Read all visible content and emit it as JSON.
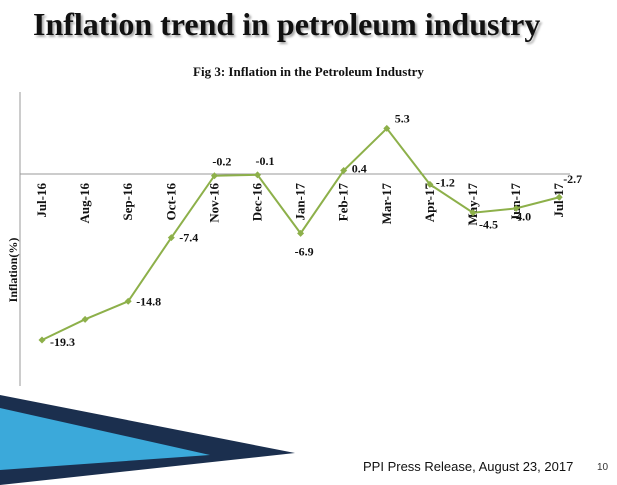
{
  "slide": {
    "title": "Inflation trend  in petroleum industry",
    "footer": "PPI Press Release, August 23, 2017",
    "page_number": "10"
  },
  "colors": {
    "line": "#8DB04A",
    "marker": "#8DB04A",
    "accent_dark": "#1B2F4E",
    "accent_light": "#3BA9DA"
  },
  "chart_data": {
    "type": "line",
    "title": "Fig 3: Inflation in the Petroleum Industry",
    "xlabel": "",
    "ylabel": "Inflation(%)",
    "categories": [
      "Jul-16",
      "Aug-16",
      "Sep-16",
      "Oct-16",
      "Nov-16",
      "Dec-16",
      "Jan-17",
      "Feb-17",
      "Mar-17",
      "Apr-17",
      "May-17",
      "Jun-17",
      "Jul-17"
    ],
    "series": [
      {
        "values": [
          -19.3,
          -16.9,
          -14.8,
          -7.4,
          -0.2,
          -0.1,
          -6.9,
          0.4,
          5.3,
          -1.2,
          -4.5,
          -4.0,
          -2.7
        ]
      }
    ],
    "data_labels": [
      "-19.3",
      "",
      "-14.8",
      "-7.4",
      "-0.2",
      "-0.1",
      "-6.9",
      "0.4",
      "5.3",
      "-1.2",
      "-4.5",
      "-4.0",
      "-2.7"
    ],
    "ylim": [
      -22,
      10
    ],
    "grid": false,
    "legend": "none"
  }
}
